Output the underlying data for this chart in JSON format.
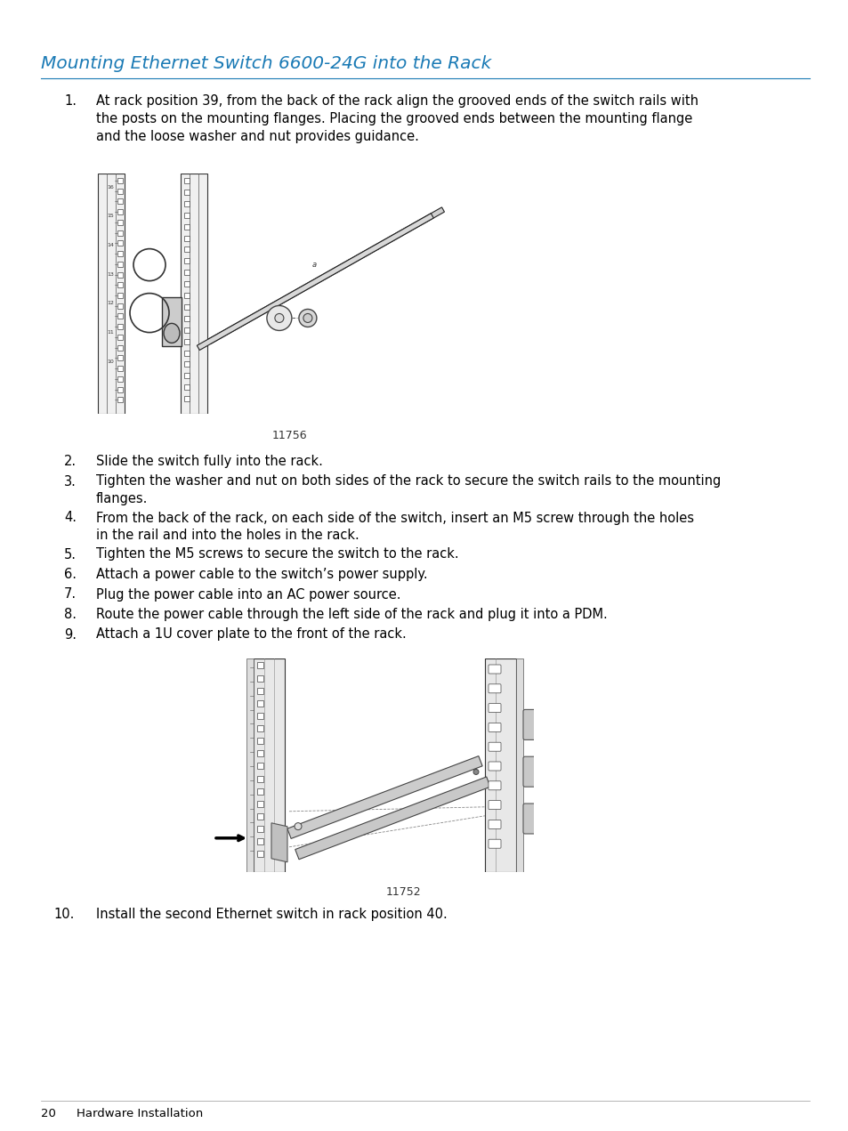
{
  "title": "Mounting Ethernet Switch 6600-24G into the Rack",
  "title_color": "#1a7ab5",
  "background_color": "#ffffff",
  "page_number": "20",
  "page_footer": "Hardware Installation",
  "figure1_caption": "11756",
  "figure2_caption": "11752",
  "step1_text": "At rack position 39, from the back of the rack align the grooved ends of the switch rails with\nthe posts on the mounting flanges. Placing the grooved ends between the mounting flange\nand the loose washer and nut provides guidance.",
  "steps": [
    {
      "num": "2.",
      "text": "Slide the switch fully into the rack."
    },
    {
      "num": "3.",
      "text": "Tighten the washer and nut on both sides of the rack to secure the switch rails to the mounting\nflanges."
    },
    {
      "num": "4.",
      "text": "From the back of the rack, on each side of the switch, insert an M5 screw through the holes\nin the rail and into the holes in the rack."
    },
    {
      "num": "5.",
      "text": "Tighten the M5 screws to secure the switch to the rack."
    },
    {
      "num": "6.",
      "text": "Attach a power cable to the switch’s power supply."
    },
    {
      "num": "7.",
      "text": "Plug the power cable into an AC power source."
    },
    {
      "num": "8.",
      "text": "Route the power cable through the left side of the rack and plug it into a PDM."
    },
    {
      "num": "9.",
      "text": "Attach a 1U cover plate to the front of the rack."
    }
  ],
  "step10_text": "Install the second Ethernet switch in rack position 40.",
  "title_fontsize": 14.5,
  "body_fontsize": 10.5,
  "footer_fontsize": 9.5,
  "num_fontsize": 10.5
}
